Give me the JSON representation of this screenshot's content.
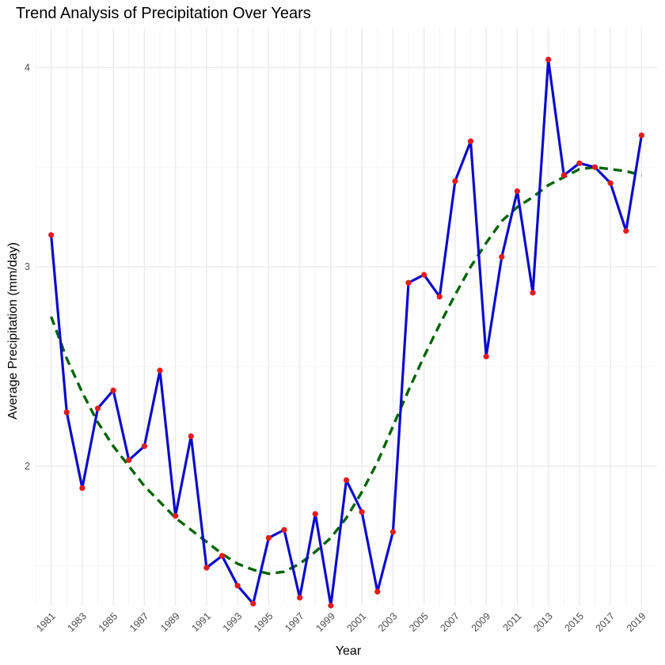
{
  "chart_data": {
    "type": "line",
    "title": "Trend Analysis of Precipitation Over Years",
    "xlabel": "Year",
    "ylabel": "Average Precipitation (mm/day)",
    "x": [
      1981,
      1982,
      1983,
      1984,
      1985,
      1986,
      1987,
      1988,
      1989,
      1990,
      1991,
      1992,
      1993,
      1994,
      1995,
      1996,
      1997,
      1998,
      1999,
      2000,
      2001,
      2002,
      2003,
      2004,
      2005,
      2006,
      2007,
      2008,
      2009,
      2010,
      2011,
      2012,
      2013,
      2014,
      2015,
      2016,
      2017,
      2018,
      2019
    ],
    "x_ticks": [
      1981,
      1983,
      1985,
      1987,
      1989,
      1991,
      1993,
      1995,
      1997,
      1999,
      2001,
      2003,
      2005,
      2007,
      2009,
      2011,
      2013,
      2015,
      2017,
      2019
    ],
    "y_ticks": [
      2,
      3,
      4
    ],
    "xlim": [
      1980,
      2020
    ],
    "ylim": [
      1.3,
      4.2
    ],
    "grid": true,
    "series": [
      {
        "style": "solid line with points",
        "color": "#0a0acd",
        "point_color": "#e41a1c",
        "values": [
          3.16,
          2.27,
          1.89,
          2.29,
          2.38,
          2.03,
          2.1,
          2.48,
          1.75,
          2.15,
          1.49,
          1.55,
          1.4,
          1.31,
          1.64,
          1.68,
          1.34,
          1.76,
          1.3,
          1.93,
          1.77,
          1.37,
          1.67,
          2.92,
          2.96,
          2.85,
          3.43,
          3.63,
          2.55,
          3.05,
          3.38,
          2.87,
          4.04,
          3.46,
          3.52,
          3.5,
          3.42,
          3.18,
          3.66
        ]
      },
      {
        "style": "dashed smoothed trend",
        "color": "#006400",
        "values": [
          2.75,
          2.54,
          2.37,
          2.22,
          2.1,
          2.0,
          1.9,
          1.82,
          1.74,
          1.68,
          1.62,
          1.56,
          1.51,
          1.48,
          1.46,
          1.47,
          1.51,
          1.57,
          1.64,
          1.74,
          1.87,
          2.02,
          2.2,
          2.38,
          2.55,
          2.71,
          2.86,
          3.0,
          3.12,
          3.23,
          3.3,
          3.35,
          3.41,
          3.45,
          3.49,
          3.5,
          3.49,
          3.48,
          3.46
        ]
      }
    ]
  }
}
